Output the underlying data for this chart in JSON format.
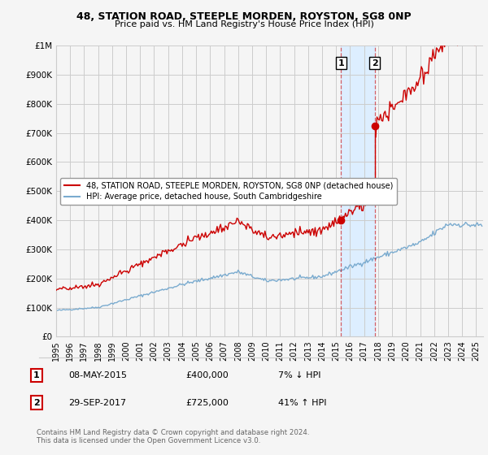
{
  "title": "48, STATION ROAD, STEEPLE MORDEN, ROYSTON, SG8 0NP",
  "subtitle": "Price paid vs. HM Land Registry's House Price Index (HPI)",
  "ylabel_ticks": [
    "£0",
    "£100K",
    "£200K",
    "£300K",
    "£400K",
    "£500K",
    "£600K",
    "£700K",
    "£800K",
    "£900K",
    "£1M"
  ],
  "ytick_vals": [
    0,
    100000,
    200000,
    300000,
    400000,
    500000,
    600000,
    700000,
    800000,
    900000,
    1000000
  ],
  "ylim": [
    0,
    1000000
  ],
  "xlim_start": 1995.0,
  "xlim_end": 2025.5,
  "sale1_x": 2015.35,
  "sale1_y": 400000,
  "sale2_x": 2017.75,
  "sale2_y": 725000,
  "sale1_label": "1",
  "sale2_label": "2",
  "vline1_x": 2015.35,
  "vline2_x": 2017.75,
  "legend_line1": "48, STATION ROAD, STEEPLE MORDEN, ROYSTON, SG8 0NP (detached house)",
  "legend_line2": "HPI: Average price, detached house, South Cambridgeshire",
  "annotation1_num": "1",
  "annotation1_date": "08-MAY-2015",
  "annotation1_price": "£400,000",
  "annotation1_hpi": "7% ↓ HPI",
  "annotation2_num": "2",
  "annotation2_date": "29-SEP-2017",
  "annotation2_price": "£725,000",
  "annotation2_hpi": "41% ↑ HPI",
  "footnote": "Contains HM Land Registry data © Crown copyright and database right 2024.\nThis data is licensed under the Open Government Licence v3.0.",
  "red_color": "#cc0000",
  "blue_color": "#7aabcf",
  "shade_color": "#ddeeff",
  "background_color": "#f5f5f5",
  "grid_color": "#cccccc"
}
